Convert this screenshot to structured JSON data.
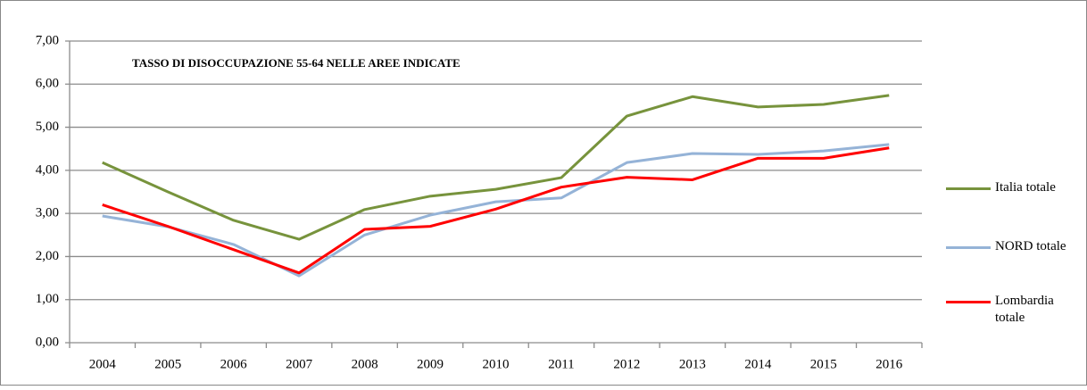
{
  "chart_data": {
    "type": "line",
    "title": "TASSO DI DISOCCUPAZIONE 55-64 NELLE AREE INDICATE",
    "categories": [
      "2004",
      "2005",
      "2006",
      "2007",
      "2008",
      "2009",
      "2010",
      "2011",
      "2012",
      "2013",
      "2014",
      "2015",
      "2016"
    ],
    "series": [
      {
        "name": "Italia totale",
        "color": "#77933c",
        "values": [
          4.18,
          3.5,
          2.84,
          2.4,
          3.09,
          3.4,
          3.56,
          3.83,
          5.26,
          5.71,
          5.47,
          5.53,
          5.74
        ]
      },
      {
        "name": "NORD totale",
        "color": "#95b3d7",
        "values": [
          2.94,
          2.69,
          2.28,
          1.55,
          2.5,
          2.96,
          3.27,
          3.36,
          4.18,
          4.39,
          4.37,
          4.45,
          4.6
        ]
      },
      {
        "name": "Lombardia totale",
        "color": "#ff0000",
        "values": [
          3.2,
          2.7,
          2.16,
          1.62,
          2.63,
          2.7,
          3.1,
          3.61,
          3.84,
          3.78,
          4.28,
          4.28,
          4.52
        ]
      }
    ],
    "ylim": [
      0,
      7
    ],
    "yticks": [
      {
        "value": 0,
        "label": "0,00"
      },
      {
        "value": 1,
        "label": "1,00"
      },
      {
        "value": 2,
        "label": "2,00"
      },
      {
        "value": 3,
        "label": "3,00"
      },
      {
        "value": 4,
        "label": "4,00"
      },
      {
        "value": 5,
        "label": "5,00"
      },
      {
        "value": 6,
        "label": "6,00"
      },
      {
        "value": 7,
        "label": "7,00"
      }
    ],
    "grid": true,
    "legend": "right"
  }
}
